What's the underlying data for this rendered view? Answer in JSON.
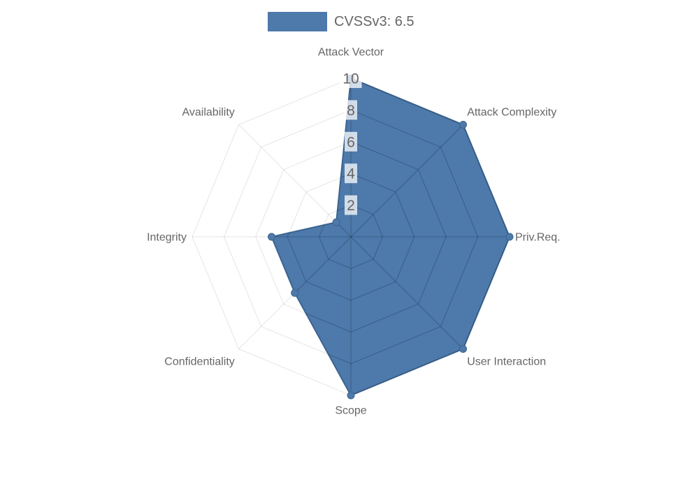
{
  "legend": {
    "items": [
      {
        "label": "CVSSv3: 6.5",
        "color": "#4d79ab"
      }
    ]
  },
  "chart_data": {
    "type": "radar",
    "title": "CVSSv3: 6.5",
    "categories": [
      "Attack Vector",
      "Attack Complexity",
      "Priv.Req.",
      "User Interaction",
      "Scope",
      "Confidentiality",
      "Integrity",
      "Availability"
    ],
    "series": [
      {
        "name": "CVSSv3: 6.5",
        "values": [
          10,
          10,
          10,
          10,
          10,
          5,
          5,
          1.3
        ]
      }
    ],
    "axis": {
      "min": 0,
      "max": 10,
      "ticks": [
        2,
        4,
        6,
        8,
        10
      ]
    },
    "grid": {
      "shape": "polygon",
      "rings": 5,
      "spokes": 8
    },
    "legend_position": "top-center",
    "point_markers": true
  },
  "colors": {
    "fill": "#4d79ab",
    "stroke": "#3d648f",
    "grid_outer": "rgba(0,0,0,0.10)",
    "grid_inner": "rgba(10,25,40,0.28)",
    "tick_text": "#666666",
    "tick_backdrop": "rgba(255,255,255,0.75)",
    "label_text": "#666666",
    "background": "#ffffff"
  }
}
